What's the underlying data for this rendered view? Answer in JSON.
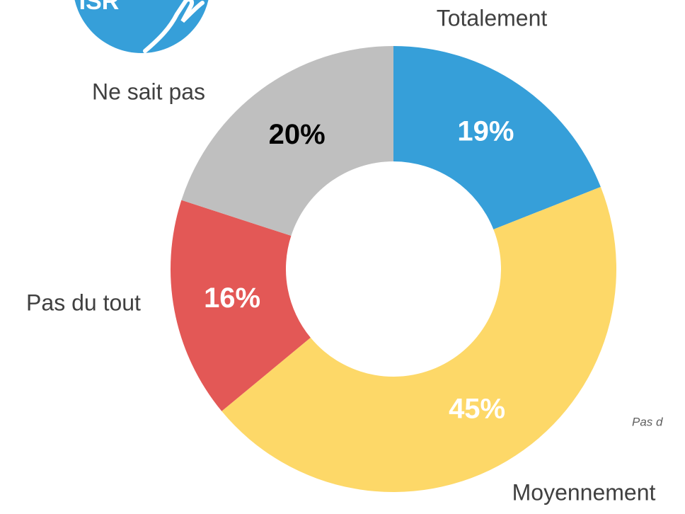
{
  "logo_text": "ISR",
  "note": "Pas d",
  "chart_data": {
    "type": "donut",
    "categories": [
      "Totalement",
      "Moyennement",
      "Pas du tout",
      "Ne sait pas"
    ],
    "values": [
      19,
      45,
      16,
      20
    ],
    "value_labels": [
      "19%",
      "45%",
      "16%",
      "20%"
    ],
    "colors": [
      "#369fd9",
      "#fdd868",
      "#e35856",
      "#bfbfbf"
    ],
    "label_colors": [
      "#ffffff",
      "#ffffff",
      "#ffffff",
      "#000000"
    ]
  }
}
